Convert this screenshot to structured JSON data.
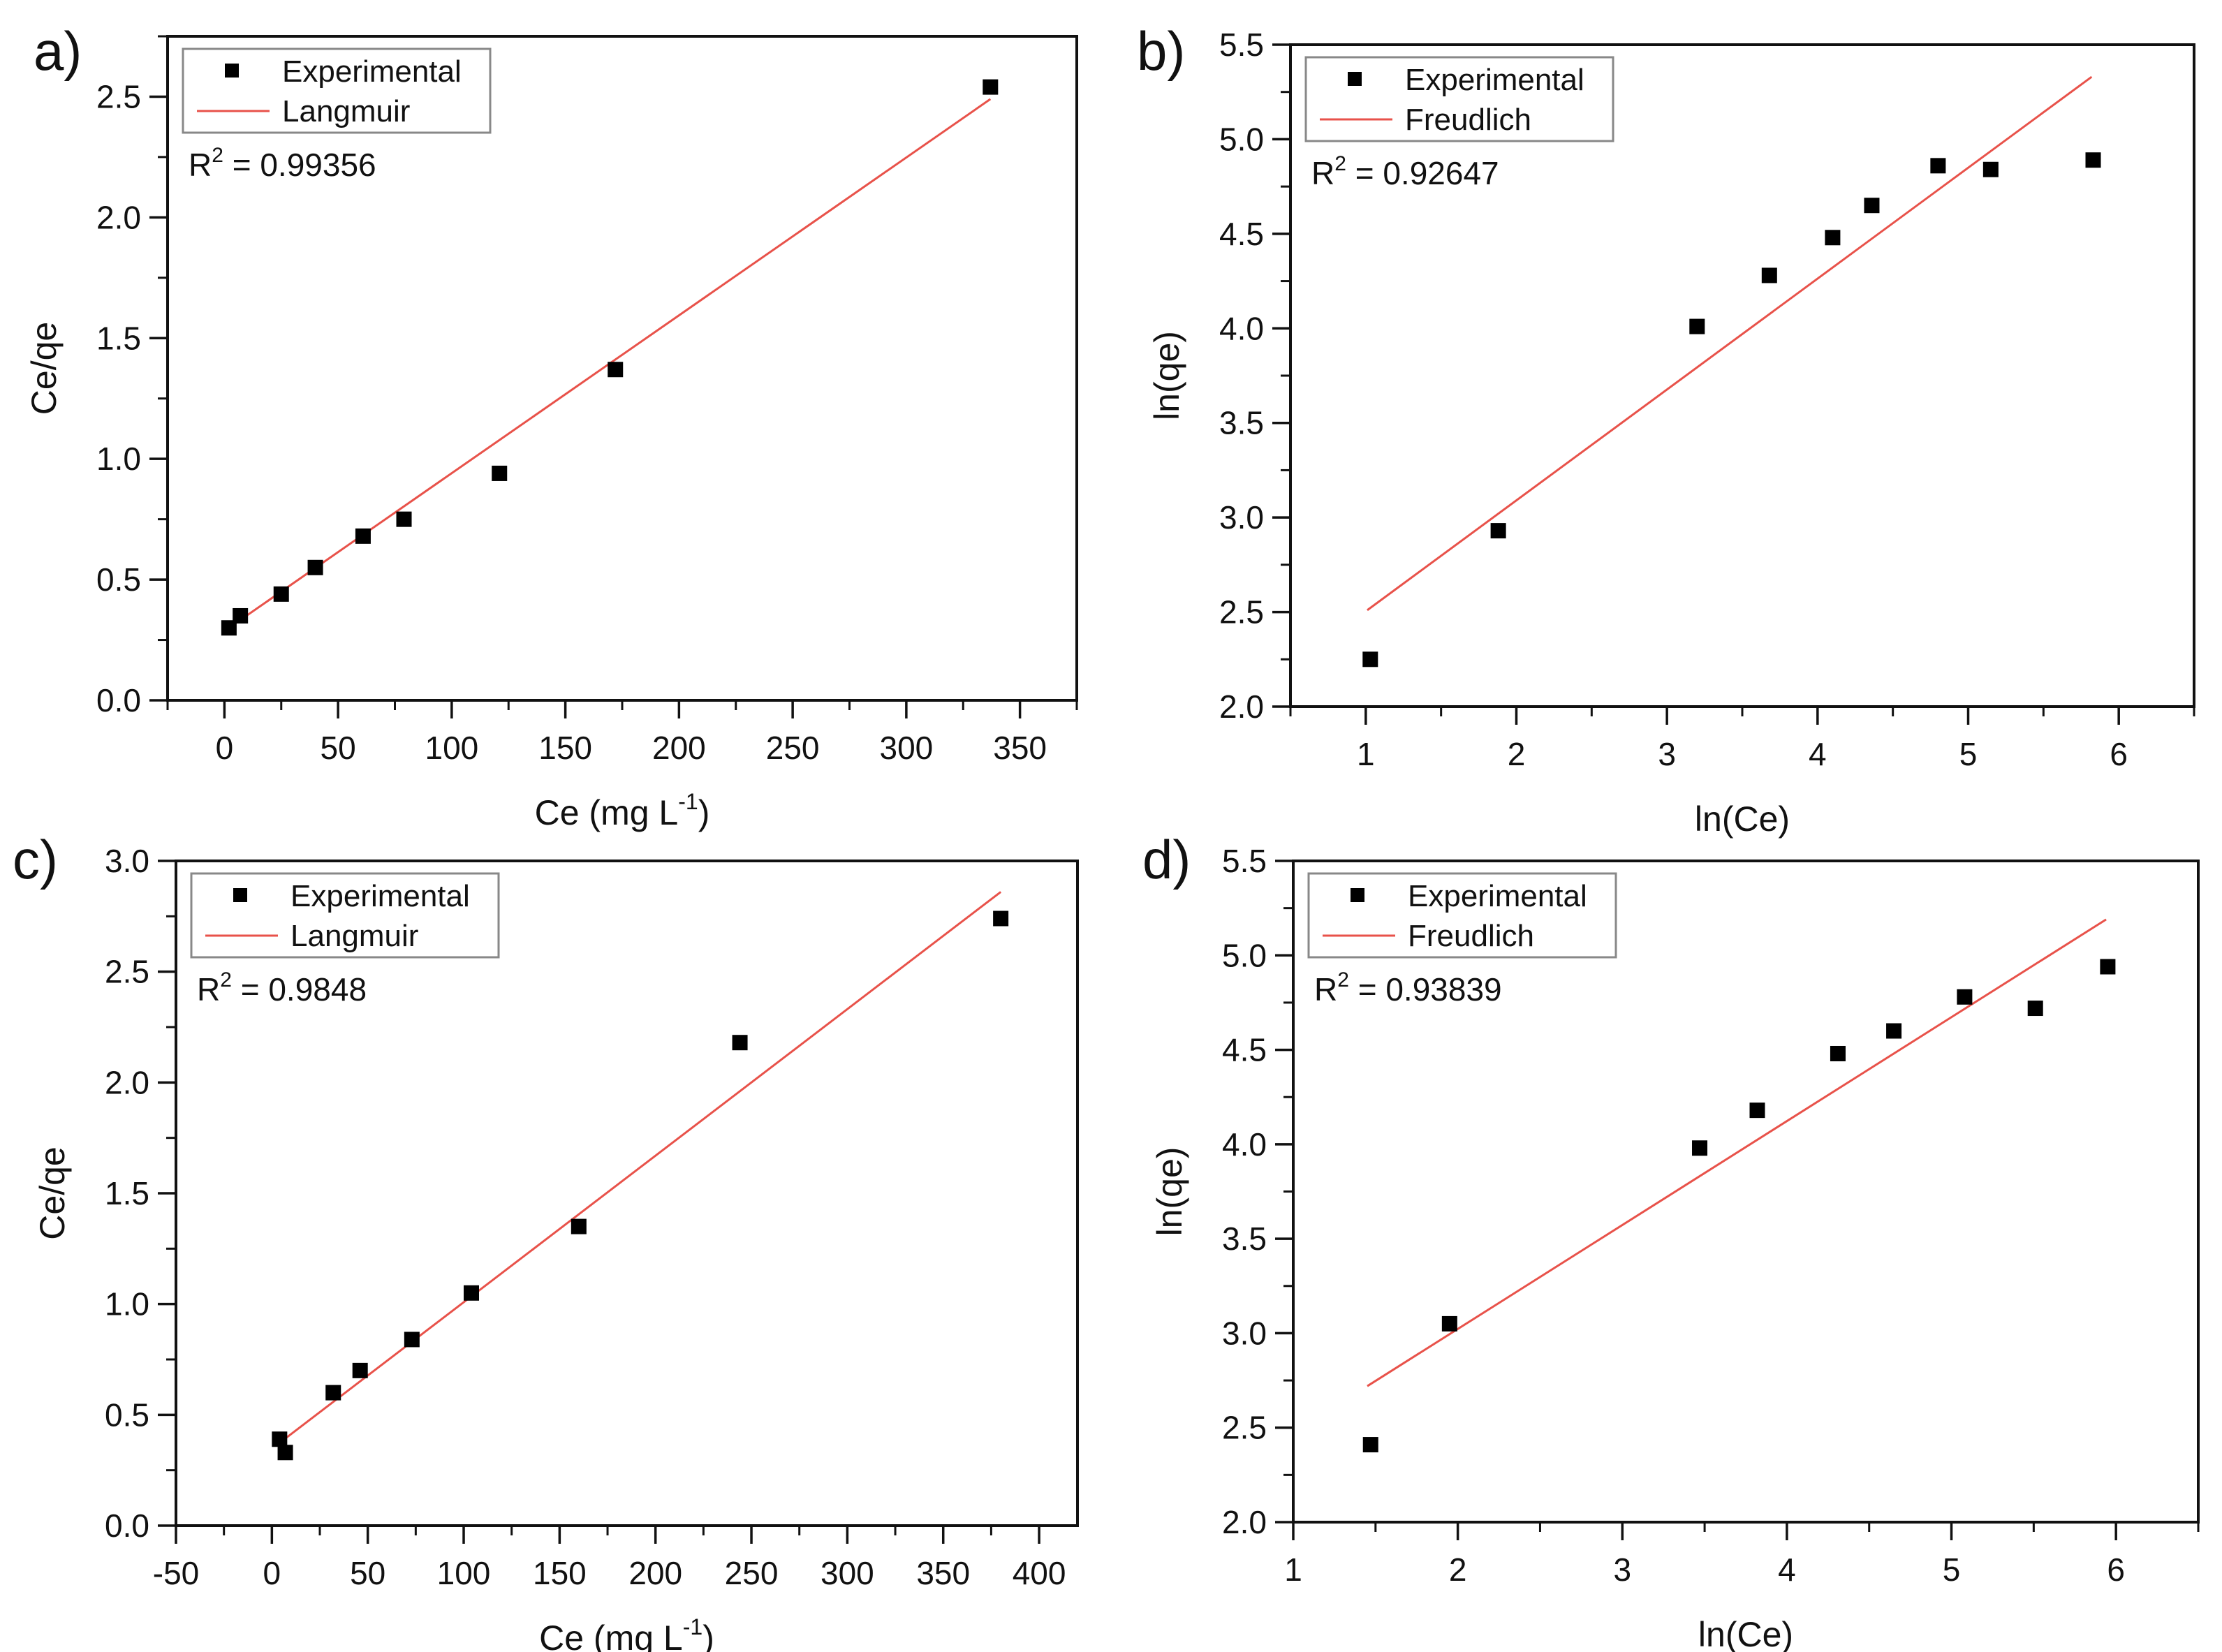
{
  "figure": {
    "colors": {
      "axis": "#111111",
      "fit_line": "#e8524a",
      "marker": "#000000",
      "legend_border": "#888888"
    }
  },
  "chart_data": [
    {
      "panel": "a)",
      "type": "scatter",
      "xlabel": "Ce (mg L",
      "xlabel_sup": "-1",
      "xlabel_end": ")",
      "ylabel": "Ce/qe",
      "xlim": [
        -25,
        375
      ],
      "ylim": [
        0,
        2.75
      ],
      "xticks": [
        0,
        50,
        100,
        150,
        200,
        250,
        300,
        350
      ],
      "xticklabels": [
        "0",
        "50",
        "100",
        "150",
        "200",
        "250",
        "300",
        "350"
      ],
      "yticks": [
        0,
        0.5,
        1.0,
        1.5,
        2.0,
        2.5
      ],
      "yticklabels": [
        "0.0",
        "0.5",
        "1.0",
        "1.5",
        "2.0",
        "2.5"
      ],
      "xminor": 25,
      "yminor": 0.25,
      "legend": {
        "experimental": "Experimental",
        "fit": "Langmuir",
        "position": "top-left"
      },
      "r2": {
        "prefix": "R",
        "sup": "2",
        "value": " = 0.99356"
      },
      "points": [
        [
          2,
          0.3
        ],
        [
          7,
          0.35
        ],
        [
          25,
          0.44
        ],
        [
          40,
          0.55
        ],
        [
          61,
          0.68
        ],
        [
          79,
          0.75
        ],
        [
          121,
          0.94
        ],
        [
          172,
          1.37
        ],
        [
          337,
          2.54
        ]
      ],
      "fit": [
        [
          2,
          0.3
        ],
        [
          337,
          2.49
        ]
      ]
    },
    {
      "panel": "b)",
      "type": "scatter",
      "xlabel": "ln(Ce)",
      "xlabel_sup": "",
      "xlabel_end": "",
      "ylabel": "ln(qe)",
      "xlim": [
        0.5,
        6.5
      ],
      "ylim": [
        2.0,
        5.5
      ],
      "xticks": [
        1,
        2,
        3,
        4,
        5,
        6
      ],
      "xticklabels": [
        "1",
        "2",
        "3",
        "4",
        "5",
        "6"
      ],
      "yticks": [
        2.0,
        2.5,
        3.0,
        3.5,
        4.0,
        4.5,
        5.0,
        5.5
      ],
      "yticklabels": [
        "2.0",
        "2.5",
        "3.0",
        "3.5",
        "4.0",
        "4.5",
        "5.0",
        "5.5"
      ],
      "xminor": 0.5,
      "yminor": 0.25,
      "legend": {
        "experimental": "Experimental",
        "fit": "Freudlich",
        "position": "top-left"
      },
      "r2": {
        "prefix": "R",
        "sup": "2",
        "value": " = 0.92647"
      },
      "points": [
        [
          1.03,
          2.25
        ],
        [
          1.88,
          2.93
        ],
        [
          3.2,
          4.01
        ],
        [
          3.68,
          4.28
        ],
        [
          4.1,
          4.48
        ],
        [
          4.36,
          4.65
        ],
        [
          4.8,
          4.86
        ],
        [
          5.15,
          4.84
        ],
        [
          5.83,
          4.89
        ]
      ],
      "fit": [
        [
          1.01,
          2.51
        ],
        [
          5.82,
          5.33
        ]
      ]
    },
    {
      "panel": "c)",
      "type": "scatter",
      "xlabel": "Ce (mg L",
      "xlabel_sup": "-1",
      "xlabel_end": ")",
      "ylabel": "Ce/qe",
      "xlim": [
        -50,
        420
      ],
      "ylim": [
        0,
        3.0
      ],
      "xticks": [
        -50,
        0,
        50,
        100,
        150,
        200,
        250,
        300,
        350,
        400
      ],
      "xticklabels": [
        "-50",
        "0",
        "50",
        "100",
        "150",
        "200",
        "250",
        "300",
        "350",
        "400"
      ],
      "yticks": [
        0,
        0.5,
        1.0,
        1.5,
        2.0,
        2.5,
        3.0
      ],
      "yticklabels": [
        "0.0",
        "0.5",
        "1.0",
        "1.5",
        "2.0",
        "2.5",
        "3.0"
      ],
      "xminor": 25,
      "yminor": 0.25,
      "legend": {
        "experimental": "Experimental",
        "fit": "Langmuir",
        "position": "top-left"
      },
      "r2": {
        "prefix": "R",
        "sup": "2",
        "value": " = 0.9848"
      },
      "points": [
        [
          4,
          0.39
        ],
        [
          7,
          0.33
        ],
        [
          32,
          0.6
        ],
        [
          46,
          0.7
        ],
        [
          73,
          0.84
        ],
        [
          104,
          1.05
        ],
        [
          160,
          1.35
        ],
        [
          244,
          2.18
        ],
        [
          380,
          2.74
        ]
      ],
      "fit": [
        [
          5,
          0.38
        ],
        [
          380,
          2.86
        ]
      ]
    },
    {
      "panel": "d)",
      "type": "scatter",
      "xlabel": "ln(Ce)",
      "xlabel_sup": "",
      "xlabel_end": "",
      "ylabel": "ln(qe)",
      "xlim": [
        1.0,
        6.5
      ],
      "ylim": [
        2.0,
        5.5
      ],
      "xticks": [
        1,
        2,
        3,
        4,
        5,
        6
      ],
      "xticklabels": [
        "1",
        "2",
        "3",
        "4",
        "5",
        "6"
      ],
      "yticks": [
        2.0,
        2.5,
        3.0,
        3.5,
        4.0,
        4.5,
        5.0,
        5.5
      ],
      "yticklabels": [
        "2.0",
        "2.5",
        "3.0",
        "3.5",
        "4.0",
        "4.5",
        "5.0",
        "5.5"
      ],
      "xminor": 0.5,
      "yminor": 0.25,
      "legend": {
        "experimental": "Experimental",
        "fit": "Freudlich",
        "position": "top-left"
      },
      "r2": {
        "prefix": "R",
        "sup": "2",
        "value": " = 0.93839"
      },
      "points": [
        [
          1.47,
          2.41
        ],
        [
          1.95,
          3.05
        ],
        [
          3.47,
          3.98
        ],
        [
          3.82,
          4.18
        ],
        [
          4.31,
          4.48
        ],
        [
          4.65,
          4.6
        ],
        [
          5.08,
          4.78
        ],
        [
          5.51,
          4.72
        ],
        [
          5.95,
          4.94
        ]
      ],
      "fit": [
        [
          1.45,
          2.72
        ],
        [
          5.94,
          5.19
        ]
      ]
    }
  ]
}
